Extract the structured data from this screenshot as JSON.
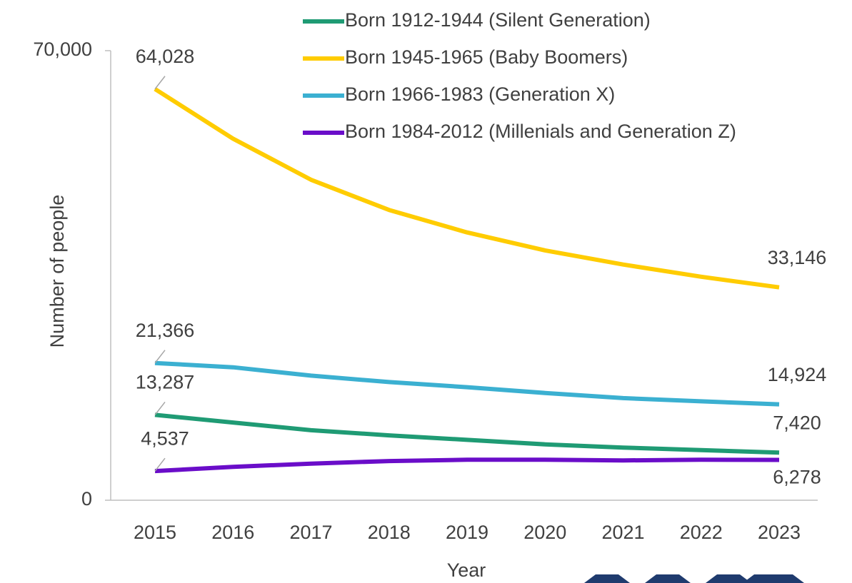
{
  "chart_data": {
    "type": "line",
    "xlabel": "Year",
    "ylabel": "Number of people",
    "categories": [
      "2015",
      "2016",
      "2017",
      "2018",
      "2019",
      "2020",
      "2021",
      "2022",
      "2023"
    ],
    "ylim": [
      0,
      70000
    ],
    "yticks": [
      0,
      {
        "value": 70000,
        "label": "70,000"
      }
    ],
    "legend": "top",
    "series": [
      {
        "name": "Born 1912-1944 (Silent Generation)",
        "color": "#1f9b74",
        "values": [
          13287,
          12100,
          10900,
          10100,
          9400,
          8700,
          8200,
          7800,
          7420
        ],
        "value_labels": [
          "13,287",
          null,
          null,
          null,
          null,
          null,
          null,
          null,
          "7,420"
        ]
      },
      {
        "name": "Born 1945-1965 (Baby Boomers)",
        "color": "#ffcc00",
        "values": [
          64028,
          56300,
          49900,
          45200,
          41700,
          38900,
          36700,
          34800,
          33146
        ],
        "value_labels": [
          "64,028",
          null,
          null,
          null,
          null,
          null,
          null,
          null,
          "33,146"
        ]
      },
      {
        "name": "Born 1966-1983 (Generation X)",
        "color": "#3bb0d1",
        "values": [
          21366,
          20700,
          19400,
          18400,
          17600,
          16700,
          15900,
          15400,
          14924
        ],
        "value_labels": [
          "21,366",
          null,
          null,
          null,
          null,
          null,
          null,
          null,
          "14,924"
        ]
      },
      {
        "name": "Born 1984-2012 (Millenials and Generation Z)",
        "color": "#6a0dc9",
        "values": [
          4537,
          5200,
          5700,
          6100,
          6300,
          6300,
          6200,
          6300,
          6278
        ],
        "value_labels": [
          "4,537",
          null,
          null,
          null,
          null,
          null,
          null,
          null,
          "6,278"
        ]
      }
    ]
  }
}
